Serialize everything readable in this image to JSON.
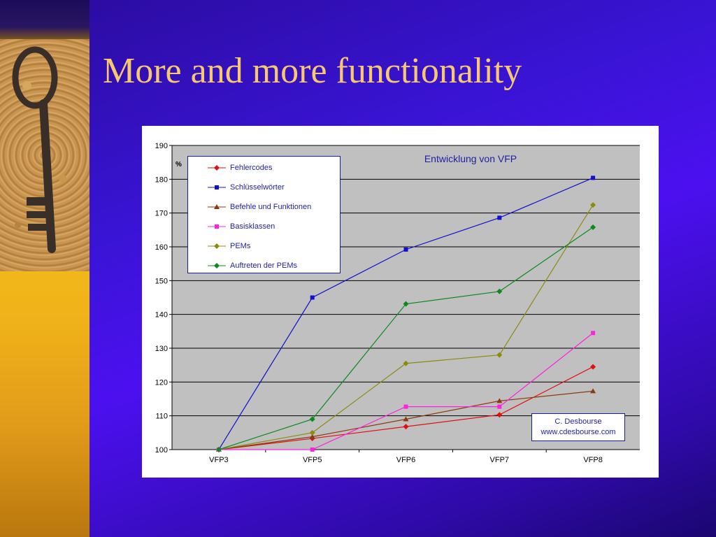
{
  "slide": {
    "title": "More and more functionality"
  },
  "colors": {
    "title": "#f7c771",
    "plot_bg": "#c0c0c0",
    "text": "#1f1fa3"
  },
  "credit": {
    "line1": "C. Desbourse",
    "line2": "www.cdesbourse.com"
  },
  "chart_data": {
    "type": "line",
    "title": "Entwicklung von VFP",
    "ylabel": "%",
    "xlabel": "",
    "categories": [
      "VFP3",
      "VFP5",
      "VFP6",
      "VFP7",
      "VFP8"
    ],
    "ylim": [
      100,
      190
    ],
    "yticks": [
      "100",
      "110",
      "120",
      "130",
      "140",
      "150",
      "160",
      "170",
      "180",
      "190"
    ],
    "grid": true,
    "legend_position": "top-left",
    "series": [
      {
        "name": "Fehlercodes",
        "color": "#e01010",
        "marker": "diamond",
        "values": [
          100,
          103.3,
          106.8,
          110.3,
          124.5
        ]
      },
      {
        "name": "Schlüsselwörter",
        "color": "#1010d0",
        "marker": "square",
        "values": [
          100,
          145,
          159.2,
          168.6,
          180.4
        ]
      },
      {
        "name": "Befehle und Funktionen",
        "color": "#8b3a10",
        "marker": "triangle",
        "values": [
          100,
          103.8,
          109,
          114.4,
          117.3
        ]
      },
      {
        "name": "Basisklassen",
        "color": "#ff20e0",
        "marker": "square",
        "values": [
          100,
          100,
          112.7,
          112.7,
          134.5
        ]
      },
      {
        "name": "PEMs",
        "color": "#8b8b10",
        "marker": "diamond",
        "values": [
          100,
          105,
          125.5,
          128,
          172.4
        ]
      },
      {
        "name": "Auftreten der PEMs",
        "color": "#0b8b1e",
        "marker": "diamond",
        "values": [
          100,
          109,
          143.1,
          146.8,
          165.8
        ]
      }
    ]
  }
}
